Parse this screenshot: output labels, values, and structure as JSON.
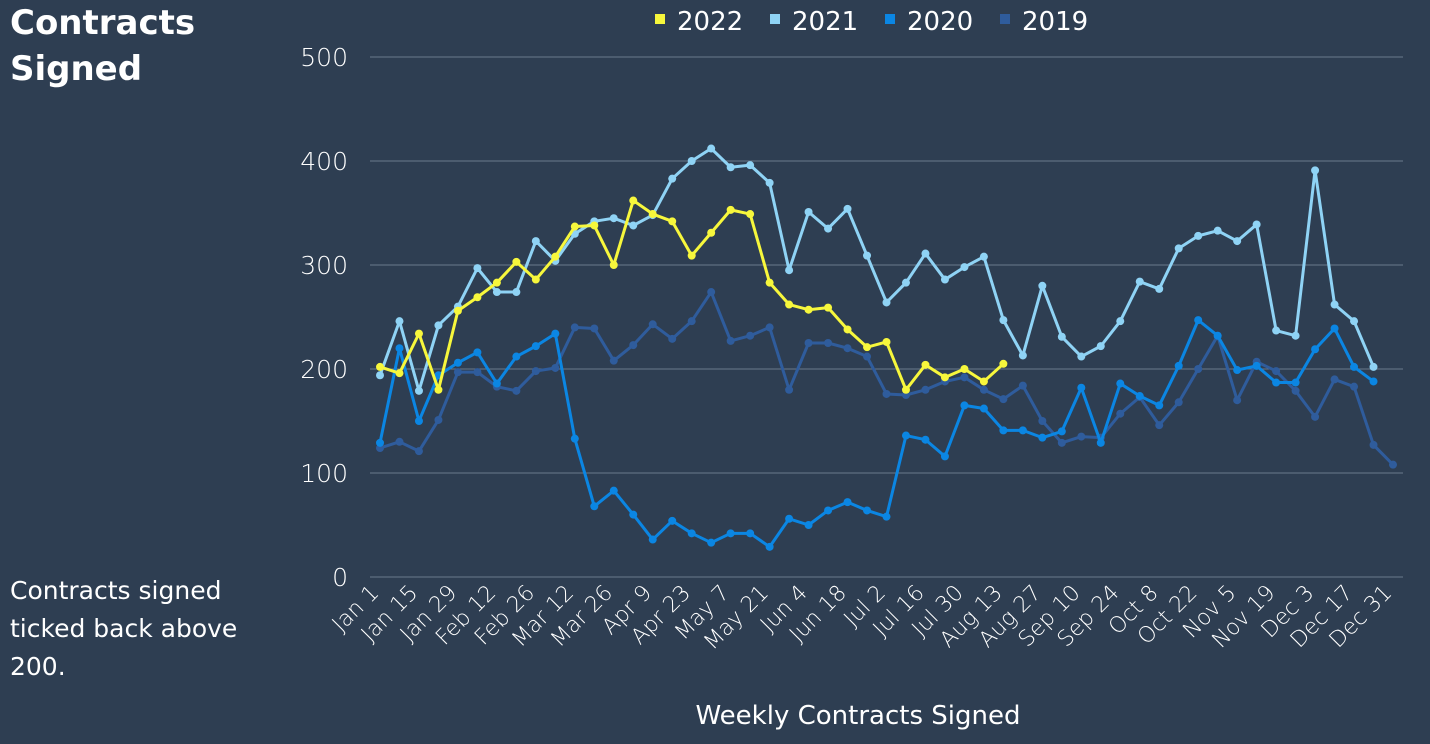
{
  "chart_data": {
    "type": "line",
    "title": "Contracts Signed",
    "annotation": "Contracts signed ticked back above 200.",
    "xlabel": "Weekly Contracts Signed",
    "categories": [
      "Jan 1",
      null,
      "Jan 15",
      null,
      "Jan 29",
      null,
      "Feb 12",
      null,
      "Feb 26",
      null,
      "Mar 12",
      null,
      "Mar 26",
      null,
      "Apr 9",
      null,
      "Apr 23",
      null,
      "May 7",
      null,
      "May 21",
      null,
      "Jun 4",
      null,
      "Jun 18",
      null,
      "Jul 2",
      null,
      "Jul 16",
      null,
      "Jul 30",
      null,
      "Aug 13",
      null,
      "Aug 27",
      null,
      "Sep 10",
      null,
      "Sep 24",
      null,
      "Oct 8",
      null,
      "Oct 22",
      null,
      "Nov 5",
      null,
      "Nov 19",
      null,
      "Dec 3",
      null,
      "Dec 17",
      null,
      "Dec 31"
    ],
    "series": [
      {
        "name": "2022",
        "color": "#f7f73c",
        "values": [
          202,
          196,
          234,
          180,
          256,
          269,
          283,
          303,
          286,
          308,
          337,
          338,
          300,
          362,
          349,
          342,
          309,
          331,
          353,
          349,
          283,
          262,
          257,
          259,
          238,
          221,
          226,
          180,
          204,
          192,
          200,
          188,
          205,
          null,
          null,
          null,
          null,
          null,
          null,
          null,
          null,
          null,
          null,
          null,
          null,
          null,
          null,
          null,
          null,
          null,
          null,
          null,
          null
        ]
      },
      {
        "name": "2021",
        "color": "#8fd3f5",
        "values": [
          194,
          246,
          179,
          242,
          260,
          297,
          274,
          274,
          323,
          304,
          330,
          342,
          345,
          338,
          348,
          383,
          400,
          412,
          394,
          396,
          379,
          295,
          351,
          335,
          354,
          309,
          264,
          283,
          311,
          286,
          298,
          308,
          247,
          213,
          280,
          231,
          212,
          222,
          246,
          284,
          277,
          316,
          328,
          333,
          323,
          339,
          237,
          232,
          391,
          262,
          246,
          202,
          null
        ]
      },
      {
        "name": "2020",
        "color": "#0b86e3",
        "values": [
          129,
          220,
          150,
          194,
          206,
          216,
          186,
          212,
          222,
          234,
          133,
          68,
          83,
          60,
          36,
          54,
          42,
          33,
          42,
          42,
          29,
          56,
          50,
          64,
          72,
          64,
          58,
          136,
          132,
          116,
          165,
          162,
          141,
          141,
          134,
          140,
          182,
          129,
          186,
          174,
          165,
          203,
          247,
          232,
          199,
          203,
          187,
          187,
          219,
          239,
          202,
          188,
          null
        ]
      },
      {
        "name": "2019",
        "color": "#2f5c9c",
        "values": [
          124,
          130,
          121,
          151,
          197,
          197,
          183,
          179,
          198,
          201,
          240,
          239,
          208,
          223,
          243,
          229,
          246,
          274,
          227,
          232,
          240,
          180,
          225,
          225,
          220,
          212,
          176,
          175,
          180,
          188,
          192,
          180,
          171,
          184,
          150,
          129,
          135,
          134,
          157,
          173,
          146,
          168,
          200,
          232,
          170,
          207,
          198,
          179,
          154,
          190,
          183,
          127,
          108
        ]
      }
    ],
    "ylim": [
      0,
      500
    ],
    "yticks": [
      0,
      100,
      200,
      300,
      400,
      500
    ],
    "grid": true,
    "legend": "top"
  }
}
